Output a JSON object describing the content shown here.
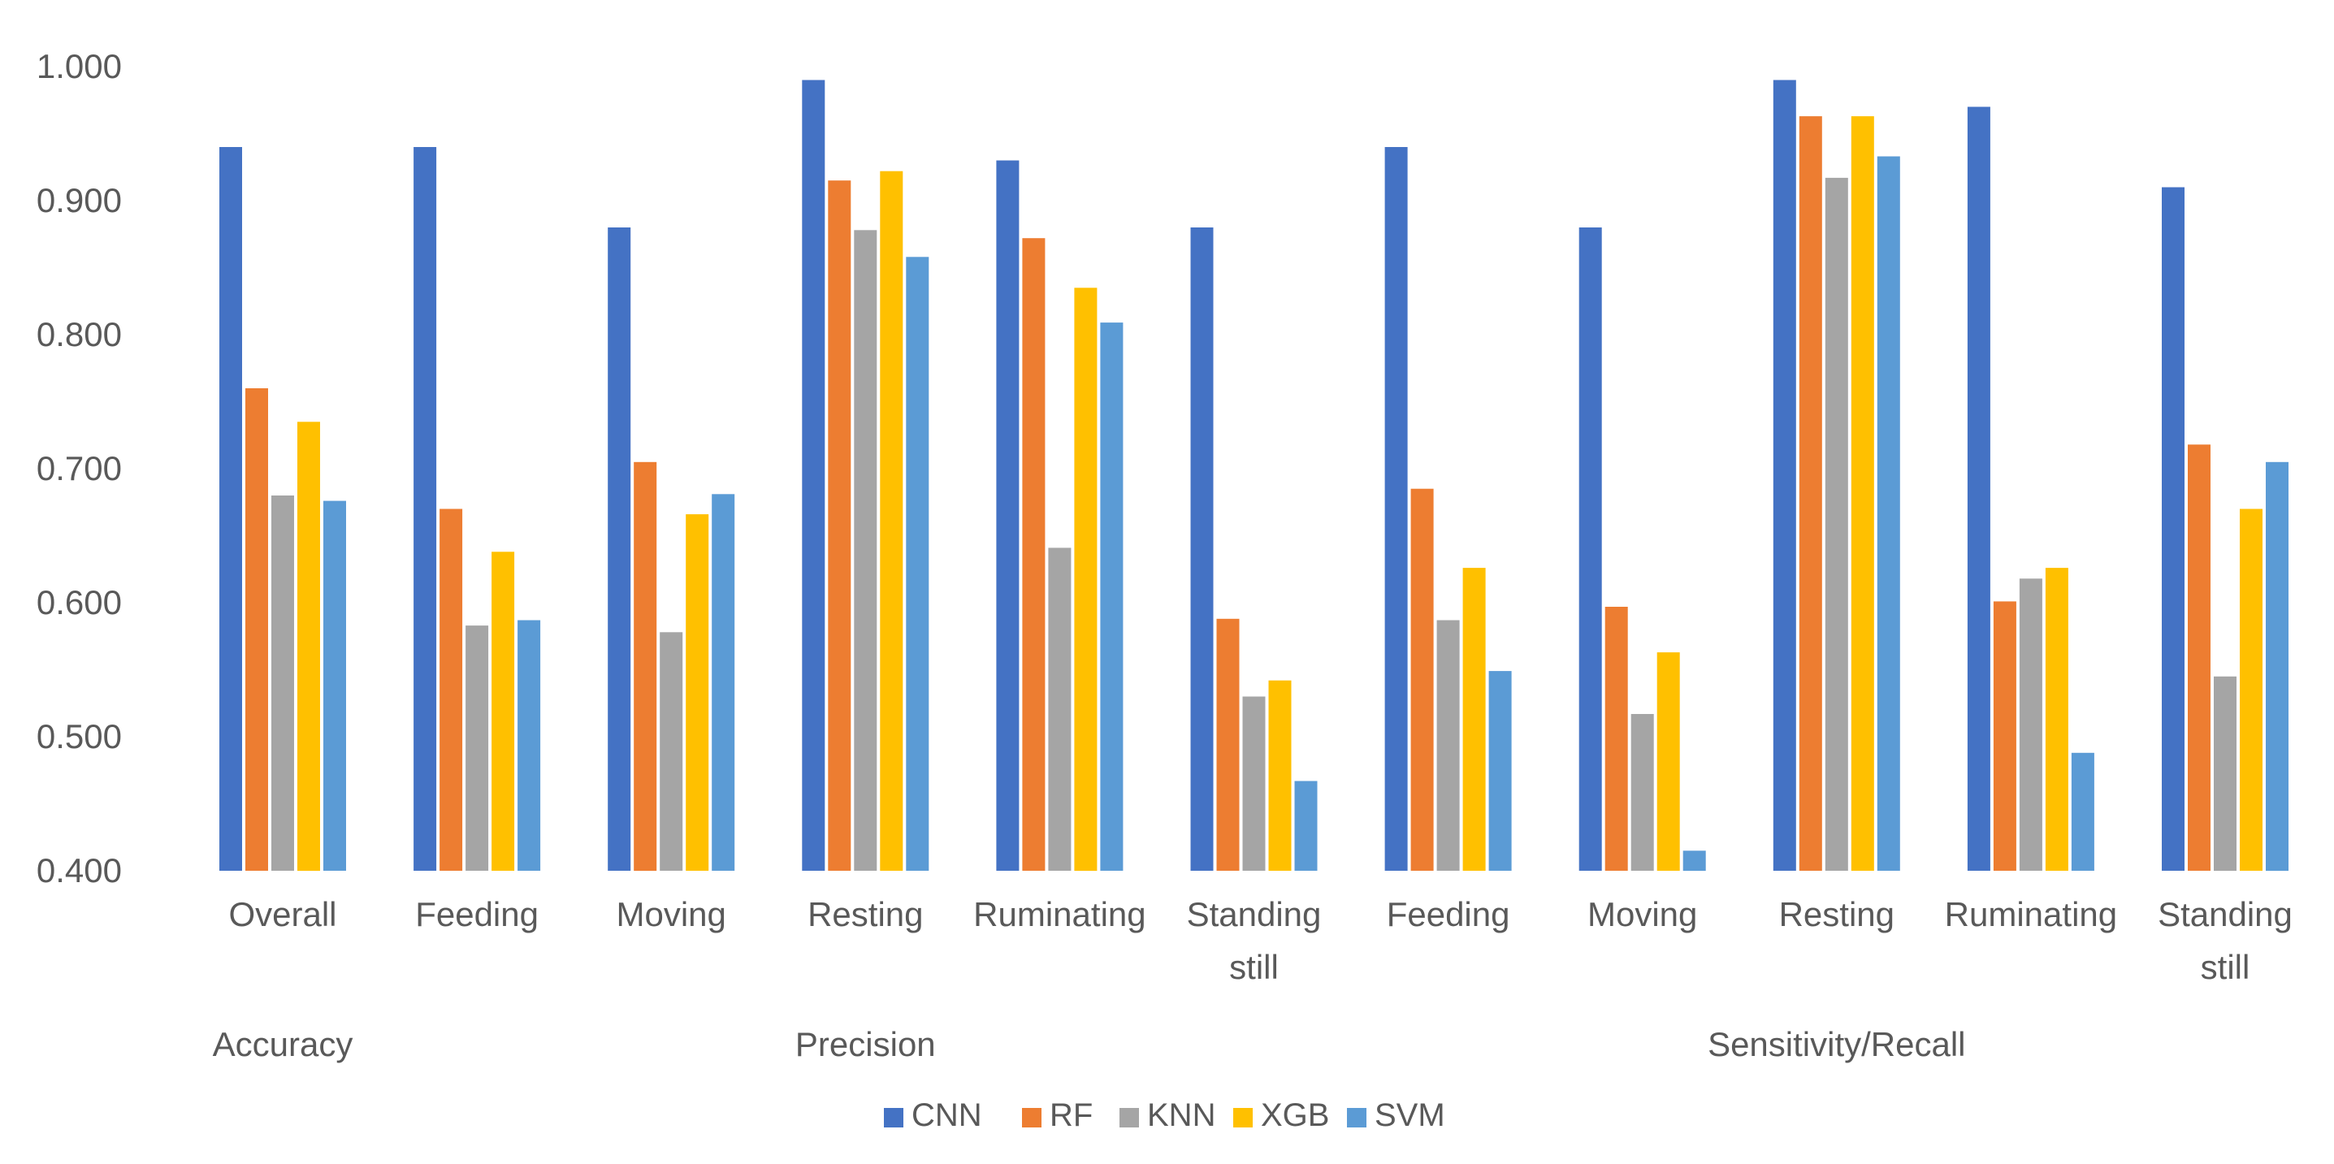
{
  "chart_data": {
    "type": "bar",
    "title": "",
    "xlabel": "",
    "ylabel": "",
    "ylim": [
      0.4,
      1.0
    ],
    "yticks": [
      "0.400",
      "0.500",
      "0.600",
      "0.700",
      "0.800",
      "0.900",
      "1.000"
    ],
    "grid": false,
    "legend_position": "bottom",
    "categories": [
      [
        "Overall"
      ],
      [
        "Feeding"
      ],
      [
        "Moving"
      ],
      [
        "Resting"
      ],
      [
        "Ruminating"
      ],
      [
        "Standing",
        "still"
      ],
      [
        "Feeding"
      ],
      [
        "Moving"
      ],
      [
        "Resting"
      ],
      [
        "Ruminating"
      ],
      [
        "Standing",
        "still"
      ]
    ],
    "groups": [
      {
        "label": "Accuracy",
        "start": 0,
        "end": 0
      },
      {
        "label": "Precision",
        "start": 1,
        "end": 5
      },
      {
        "label": "Sensitivity/Recall",
        "start": 6,
        "end": 10
      }
    ],
    "series": [
      {
        "name": "CNN",
        "color": "#4472C4",
        "values": [
          0.94,
          0.94,
          0.88,
          0.99,
          0.93,
          0.88,
          0.94,
          0.88,
          0.99,
          0.97,
          0.91
        ]
      },
      {
        "name": "RF",
        "color": "#ED7D31",
        "values": [
          0.76,
          0.67,
          0.705,
          0.915,
          0.872,
          0.588,
          0.685,
          0.597,
          0.963,
          0.601,
          0.718
        ]
      },
      {
        "name": "KNN",
        "color": "#A5A5A5",
        "values": [
          0.68,
          0.583,
          0.578,
          0.878,
          0.641,
          0.53,
          0.587,
          0.517,
          0.917,
          0.618,
          0.545
        ]
      },
      {
        "name": "XGB",
        "color": "#FFC000",
        "values": [
          0.735,
          0.638,
          0.666,
          0.922,
          0.835,
          0.542,
          0.626,
          0.563,
          0.963,
          0.626,
          0.67
        ]
      },
      {
        "name": "SVM",
        "color": "#5B9BD5",
        "values": [
          0.676,
          0.587,
          0.681,
          0.858,
          0.809,
          0.467,
          0.549,
          0.415,
          0.933,
          0.488,
          0.705
        ]
      }
    ]
  }
}
